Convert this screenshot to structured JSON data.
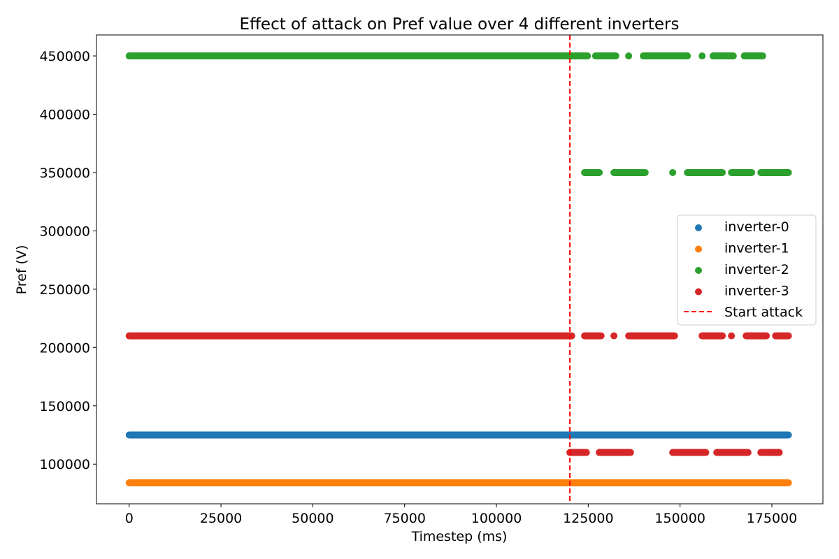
{
  "chart_data": {
    "type": "scatter",
    "title": "Effect of attack on Pref value over 4 different inverters",
    "xlabel": "Timestep (ms)",
    "ylabel": "Pref (V)",
    "xlim": [
      -8900,
      188900
    ],
    "ylim": [
      66000,
      468000
    ],
    "xticks": [
      0,
      25000,
      50000,
      75000,
      100000,
      125000,
      150000,
      175000
    ],
    "yticks": [
      100000,
      150000,
      200000,
      250000,
      300000,
      350000,
      400000,
      450000
    ],
    "grid": false,
    "legend_placement": "center-right",
    "series": [
      {
        "name": "inverter-0",
        "color": "#1f77b4",
        "segments": [
          {
            "y": 125000,
            "x_start": 0,
            "x_end": 179500
          }
        ]
      },
      {
        "name": "inverter-1",
        "color": "#ff7f0e",
        "segments": [
          {
            "y": 84000,
            "x_start": 0,
            "x_end": 179500
          }
        ]
      },
      {
        "name": "inverter-2",
        "color": "#2ca02c",
        "segments": [
          {
            "y": 450000,
            "x_start": 0,
            "x_end": 124800
          },
          {
            "y": 450000,
            "x_start": 127000,
            "x_end": 132500
          },
          {
            "y": 450000,
            "x_start": 136000,
            "x_end": 136000
          },
          {
            "y": 450000,
            "x_start": 140000,
            "x_end": 152000
          },
          {
            "y": 450000,
            "x_start": 156000,
            "x_end": 156000
          },
          {
            "y": 450000,
            "x_start": 159000,
            "x_end": 164500
          },
          {
            "y": 450000,
            "x_start": 167500,
            "x_end": 172500
          },
          {
            "y": 350000,
            "x_start": 124000,
            "x_end": 128000
          },
          {
            "y": 350000,
            "x_start": 132000,
            "x_end": 140500
          },
          {
            "y": 350000,
            "x_start": 148000,
            "x_end": 148000
          },
          {
            "y": 350000,
            "x_start": 152000,
            "x_end": 161500
          },
          {
            "y": 350000,
            "x_start": 164000,
            "x_end": 169500
          },
          {
            "y": 350000,
            "x_start": 172000,
            "x_end": 179500
          }
        ]
      },
      {
        "name": "inverter-3",
        "color": "#d62728",
        "segments": [
          {
            "y": 210000,
            "x_start": 0,
            "x_end": 120500
          },
          {
            "y": 210000,
            "x_start": 124000,
            "x_end": 128500
          },
          {
            "y": 210000,
            "x_start": 132000,
            "x_end": 132000
          },
          {
            "y": 210000,
            "x_start": 136000,
            "x_end": 148500
          },
          {
            "y": 210000,
            "x_start": 156000,
            "x_end": 161500
          },
          {
            "y": 210000,
            "x_start": 164000,
            "x_end": 164000
          },
          {
            "y": 210000,
            "x_start": 168000,
            "x_end": 173500
          },
          {
            "y": 210000,
            "x_start": 176000,
            "x_end": 179500
          },
          {
            "y": 110000,
            "x_start": 120000,
            "x_end": 124500
          },
          {
            "y": 110000,
            "x_start": 128000,
            "x_end": 136500
          },
          {
            "y": 110000,
            "x_start": 148000,
            "x_end": 157000
          },
          {
            "y": 110000,
            "x_start": 160000,
            "x_end": 168500
          },
          {
            "y": 110000,
            "x_start": 172000,
            "x_end": 177000
          }
        ]
      }
    ],
    "vlines": [
      {
        "name": "Start attack",
        "x": 120000,
        "color": "#ff0000",
        "style": "dashed"
      }
    ]
  }
}
